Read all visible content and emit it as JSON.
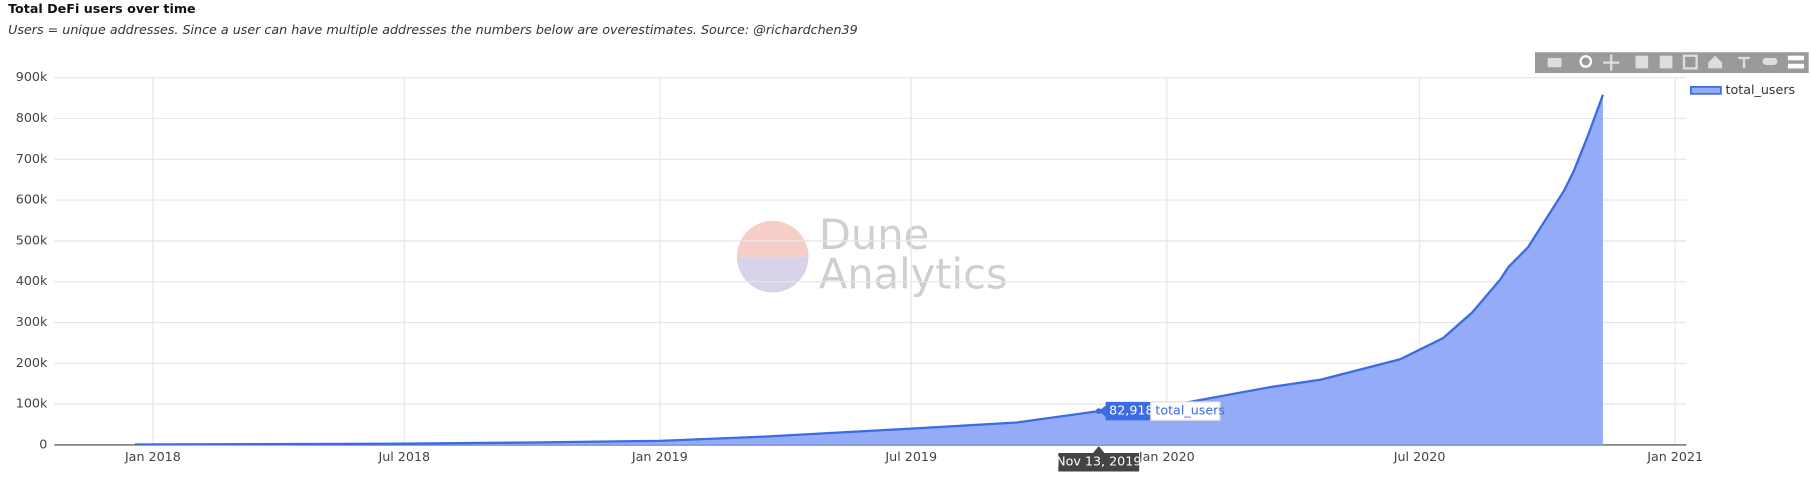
{
  "chart_data": {
    "type": "area",
    "title": "Total DeFi users over time",
    "subtitle": "Users = unique addresses. Since a user can have multiple addresses the numbers below are overestimates. Source: @richardchen39",
    "x": [
      "2017-12-19",
      "2018-07-01",
      "2018-10-01",
      "2019-01-01",
      "2019-03-15",
      "2019-07-01",
      "2019-09-15",
      "2019-11-13",
      "2020-01-01",
      "2020-03-16",
      "2020-04-21",
      "2020-06-17",
      "2020-07-18",
      "2020-08-08",
      "2020-08-28",
      "2020-09-03",
      "2020-09-17",
      "2020-10-13",
      "2020-10-20",
      "2020-10-30",
      "2020-11-10"
    ],
    "series": [
      {
        "name": "total_users",
        "color": "#3b6ce3",
        "fill": "#94acf7",
        "values": [
          1000,
          3000,
          6000,
          10000,
          20000,
          40000,
          55000,
          82918,
          95000,
          142000,
          160000,
          210000,
          262000,
          325000,
          405000,
          436000,
          484000,
          623000,
          671000,
          756000,
          858000
        ]
      }
    ],
    "xlim": [
      "2017-10-22",
      "2021-01-09"
    ],
    "xticks": [
      {
        "value": "2018-01-01",
        "label": "Jan 2018"
      },
      {
        "value": "2018-07-01",
        "label": "Jul 2018"
      },
      {
        "value": "2019-01-01",
        "label": "Jan 2019"
      },
      {
        "value": "2019-07-01",
        "label": "Jul 2019"
      },
      {
        "value": "2020-01-01",
        "label": "Jan 2020"
      },
      {
        "value": "2020-07-01",
        "label": "Jul 2020"
      },
      {
        "value": "2021-01-01",
        "label": "Jan 2021"
      }
    ],
    "ylim": [
      0,
      900000
    ],
    "yticks": [
      0,
      {
        "value": 100000,
        "label": "100k"
      },
      {
        "value": 200000,
        "label": "200k"
      },
      {
        "value": 300000,
        "label": "300k"
      },
      {
        "value": 400000,
        "label": "400k"
      },
      {
        "value": 500000,
        "label": "500k"
      },
      {
        "value": 600000,
        "label": "600k"
      },
      {
        "value": 700000,
        "label": "700k"
      },
      {
        "value": 800000,
        "label": "800k"
      },
      {
        "value": 900000,
        "label": "900k"
      }
    ],
    "grid": true,
    "legend": "top-right",
    "watermark": [
      "Dune",
      "Analytics"
    ],
    "hover": {
      "x": {
        "value": "2019-11-13",
        "label": "Nov 13, 2019"
      },
      "value": {
        "value": 82918,
        "label": "82,918"
      },
      "series": "total_users"
    }
  }
}
